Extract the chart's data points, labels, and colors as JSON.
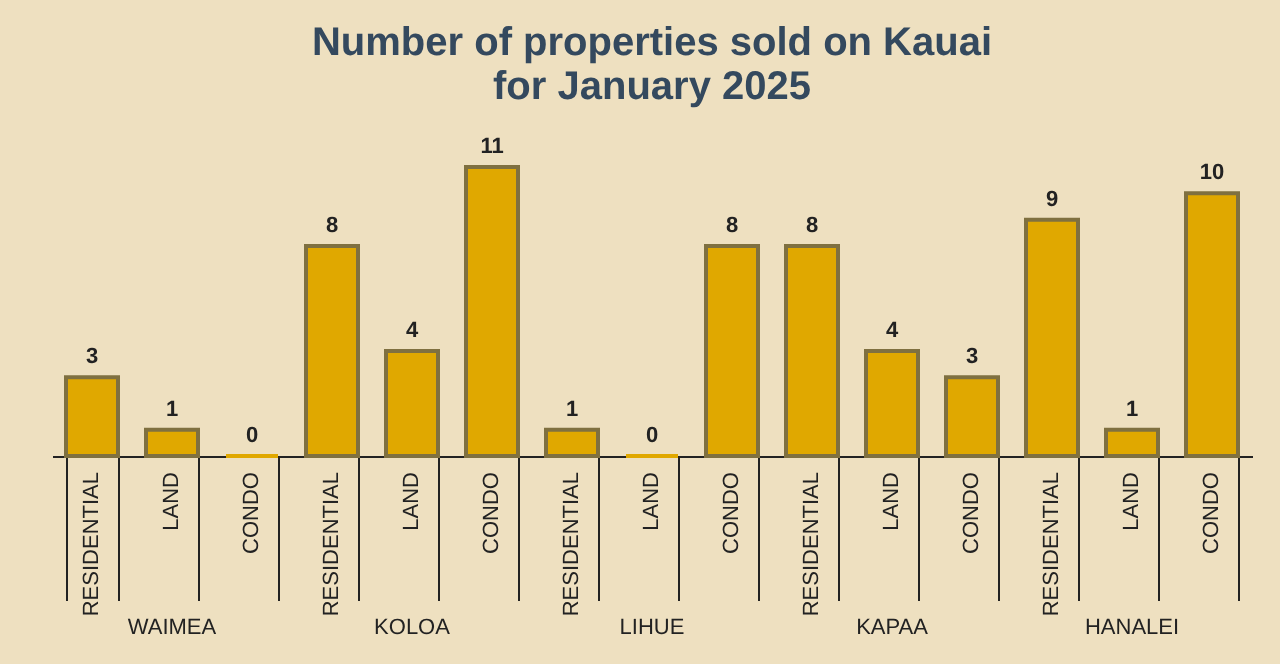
{
  "chart_data": {
    "type": "bar",
    "title": "Number of properties sold on Kauai",
    "subtitle": "for  January 2025",
    "categories": [
      "RESIDENTIAL",
      "LAND",
      "CONDO",
      "RESIDENTIAL",
      "LAND",
      "CONDO",
      "RESIDENTIAL",
      "LAND",
      "CONDO",
      "RESIDENTIAL",
      "LAND",
      "CONDO",
      "RESIDENTIAL",
      "LAND",
      "CONDO"
    ],
    "values": [
      3,
      1,
      0,
      8,
      4,
      11,
      1,
      0,
      8,
      8,
      4,
      3,
      9,
      1,
      10
    ],
    "color": "#e0a800",
    "data_labels": true,
    "annotations": [
      "WAIMEA",
      "KOLOA",
      "LIHUE",
      "KAPAA",
      "HANALEI"
    ]
  }
}
